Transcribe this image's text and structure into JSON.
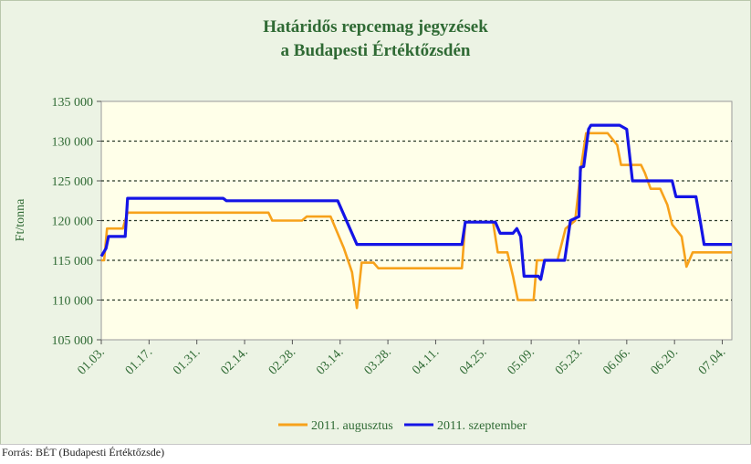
{
  "chart_data": {
    "type": "line",
    "title": "Határidős repcemag jegyzések",
    "subtitle": "a Budapesti Értéktőzsdén",
    "ylabel": "Ft/tonna",
    "xlabel": "",
    "ylim": [
      105000,
      135000
    ],
    "yticks": [
      "105 000",
      "110 000",
      "115 000",
      "120 000",
      "125 000",
      "130 000",
      "135 000"
    ],
    "ytick_values": [
      105000,
      110000,
      115000,
      120000,
      125000,
      130000,
      135000
    ],
    "xticks": [
      "01.03.",
      "01.17.",
      "01.31.",
      "02.14.",
      "02.28.",
      "03.14.",
      "03.28.",
      "04.11.",
      "04.25.",
      "05.09.",
      "05.23.",
      "06.06.",
      "06.20.",
      "07.04."
    ],
    "x_range": [
      0,
      13.2
    ],
    "grid": "horizontal dashed",
    "legend_position": "bottom",
    "series": [
      {
        "name": "2011. augusztus",
        "color": "#f7a21b",
        "points": [
          [
            0.0,
            115000
          ],
          [
            0.06,
            115000
          ],
          [
            0.12,
            119000
          ],
          [
            0.45,
            119000
          ],
          [
            0.55,
            121000
          ],
          [
            3.5,
            121000
          ],
          [
            3.58,
            120000
          ],
          [
            4.2,
            120000
          ],
          [
            4.3,
            120500
          ],
          [
            4.8,
            120500
          ],
          [
            5.08,
            116500
          ],
          [
            5.25,
            113500
          ],
          [
            5.35,
            109000
          ],
          [
            5.45,
            114700
          ],
          [
            5.7,
            114700
          ],
          [
            5.8,
            114000
          ],
          [
            7.55,
            114000
          ],
          [
            7.62,
            119800
          ],
          [
            8.2,
            119800
          ],
          [
            8.3,
            116000
          ],
          [
            8.5,
            116000
          ],
          [
            8.62,
            113000
          ],
          [
            8.72,
            110000
          ],
          [
            9.05,
            110000
          ],
          [
            9.12,
            115000
          ],
          [
            9.55,
            115000
          ],
          [
            9.72,
            119000
          ],
          [
            9.92,
            120000
          ],
          [
            10.05,
            127000
          ],
          [
            10.15,
            131000
          ],
          [
            10.6,
            131000
          ],
          [
            10.8,
            129500
          ],
          [
            10.88,
            127000
          ],
          [
            11.3,
            127000
          ],
          [
            11.38,
            126000
          ],
          [
            11.5,
            124000
          ],
          [
            11.7,
            124000
          ],
          [
            11.85,
            122000
          ],
          [
            11.95,
            119500
          ],
          [
            12.15,
            118000
          ],
          [
            12.25,
            114200
          ],
          [
            12.38,
            116000
          ],
          [
            13.2,
            116000
          ]
        ]
      },
      {
        "name": "2011. szeptember",
        "color": "#1414e6",
        "points": [
          [
            0.0,
            115500
          ],
          [
            0.1,
            116500
          ],
          [
            0.15,
            118000
          ],
          [
            0.5,
            118000
          ],
          [
            0.55,
            122800
          ],
          [
            2.55,
            122800
          ],
          [
            2.62,
            122500
          ],
          [
            4.95,
            122500
          ],
          [
            5.35,
            117000
          ],
          [
            7.55,
            117000
          ],
          [
            7.62,
            119800
          ],
          [
            8.25,
            119800
          ],
          [
            8.35,
            118400
          ],
          [
            8.62,
            118400
          ],
          [
            8.7,
            119000
          ],
          [
            8.78,
            118000
          ],
          [
            8.85,
            113000
          ],
          [
            9.15,
            113000
          ],
          [
            9.2,
            112600
          ],
          [
            9.28,
            115000
          ],
          [
            9.7,
            115000
          ],
          [
            9.82,
            120000
          ],
          [
            10.0,
            120500
          ],
          [
            10.03,
            126700
          ],
          [
            10.1,
            126800
          ],
          [
            10.2,
            131500
          ],
          [
            10.25,
            132000
          ],
          [
            10.85,
            132000
          ],
          [
            11.0,
            131500
          ],
          [
            11.12,
            125000
          ],
          [
            11.95,
            125000
          ],
          [
            12.03,
            123000
          ],
          [
            12.45,
            123000
          ],
          [
            12.55,
            119500
          ],
          [
            12.62,
            117000
          ],
          [
            13.2,
            117000
          ]
        ]
      }
    ]
  },
  "source_text": "Forrás: BÉT (Budapesti Értéktőzsde)"
}
